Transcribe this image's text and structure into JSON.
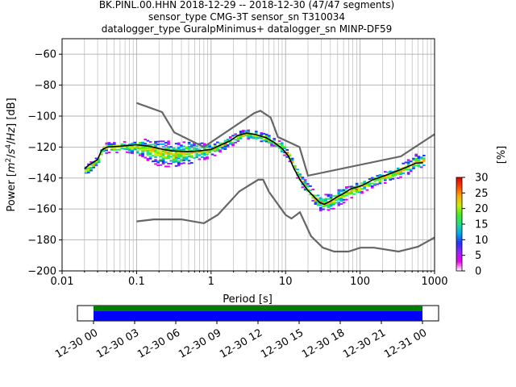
{
  "chart_data": {
    "type": "heatmap",
    "title_lines": [
      "BK.PINL.00.HHN   2018-12-29 -- 2018-12-30  (47/47 segments)",
      "sensor_type CMG-3T sensor_sn T310034",
      "datalogger_type GuralpMinimus+ datalogger_sn MINP-DF59"
    ],
    "xlabel": "Period [s]",
    "ylabel": "Power [$m^2/s^4/Hz$] [dB]",
    "ylabel_parts": [
      "Power [",
      "m",
      "2",
      "/",
      "s",
      "4",
      "/",
      "Hz",
      "] [dB]"
    ],
    "x_scale": "log",
    "xlim": [
      0.01,
      1000
    ],
    "ylim": [
      -200,
      -50
    ],
    "grid": true,
    "x_ticks": [
      {
        "value": 0.01,
        "label": "0.01"
      },
      {
        "value": 0.1,
        "label": "0.1"
      },
      {
        "value": 1,
        "label": "1"
      },
      {
        "value": 10,
        "label": "10"
      },
      {
        "value": 100,
        "label": "100"
      },
      {
        "value": 1000,
        "label": "1000"
      }
    ],
    "y_ticks": [
      {
        "value": -60,
        "label": "−60"
      },
      {
        "value": -80,
        "label": "−80"
      },
      {
        "value": -100,
        "label": "−100"
      },
      {
        "value": -120,
        "label": "−120"
      },
      {
        "value": -140,
        "label": "−140"
      },
      {
        "value": -160,
        "label": "−160"
      },
      {
        "value": -180,
        "label": "−180"
      },
      {
        "value": -200,
        "label": "−200"
      }
    ],
    "noise_models": [
      {
        "name": "NHNM",
        "color": "#666666",
        "points": [
          [
            0.1,
            -91.5
          ],
          [
            0.22,
            -97.4
          ],
          [
            0.32,
            -110.5
          ],
          [
            0.8,
            -120
          ],
          [
            3.8,
            -98
          ],
          [
            4.6,
            -96.5
          ],
          [
            6.3,
            -101
          ],
          [
            7.9,
            -113.5
          ],
          [
            15.4,
            -120
          ],
          [
            20,
            -138.5
          ],
          [
            354,
            -126
          ],
          [
            10000,
            -80
          ]
        ]
      },
      {
        "name": "NLNM",
        "color": "#666666",
        "points": [
          [
            0.1,
            -168
          ],
          [
            0.17,
            -166.7
          ],
          [
            0.4,
            -166.7
          ],
          [
            0.8,
            -169.2
          ],
          [
            1.24,
            -163.7
          ],
          [
            2.4,
            -148.6
          ],
          [
            4.3,
            -141.1
          ],
          [
            5,
            -141.1
          ],
          [
            6,
            -149
          ],
          [
            10,
            -163.8
          ],
          [
            12,
            -166.2
          ],
          [
            15.6,
            -162.1
          ],
          [
            21.9,
            -177.5
          ],
          [
            31.6,
            -185
          ],
          [
            45,
            -187.5
          ],
          [
            70,
            -187.5
          ],
          [
            101,
            -185
          ],
          [
            154,
            -185
          ],
          [
            328,
            -187.5
          ],
          [
            600,
            -184.4
          ],
          [
            10000,
            -151.5
          ]
        ]
      }
    ],
    "mean_line": {
      "color": "#000000",
      "points": [
        [
          0.02,
          -134
        ],
        [
          0.023,
          -131.5
        ],
        [
          0.026,
          -130
        ],
        [
          0.03,
          -128
        ],
        [
          0.034,
          -122
        ],
        [
          0.04,
          -120
        ],
        [
          0.06,
          -119.5
        ],
        [
          0.1,
          -118.5
        ],
        [
          0.15,
          -119.5
        ],
        [
          0.2,
          -121
        ],
        [
          0.3,
          -122.5
        ],
        [
          0.5,
          -123
        ],
        [
          0.7,
          -122.5
        ],
        [
          1,
          -121.5
        ],
        [
          1.3,
          -119
        ],
        [
          1.8,
          -116
        ],
        [
          2.3,
          -112.5
        ],
        [
          3,
          -111
        ],
        [
          4,
          -112
        ],
        [
          5.5,
          -114
        ],
        [
          7,
          -117
        ],
        [
          9,
          -121
        ],
        [
          11,
          -126
        ],
        [
          13,
          -134
        ],
        [
          16,
          -142
        ],
        [
          20,
          -148
        ],
        [
          24,
          -152
        ],
        [
          29,
          -156
        ],
        [
          33,
          -157
        ],
        [
          40,
          -155
        ],
        [
          50,
          -152
        ],
        [
          60,
          -150
        ],
        [
          75,
          -147
        ],
        [
          90,
          -146
        ],
        [
          110,
          -144.5
        ],
        [
          150,
          -141
        ],
        [
          200,
          -139
        ],
        [
          260,
          -137
        ],
        [
          330,
          -135
        ],
        [
          420,
          -133
        ],
        [
          550,
          -130.5
        ],
        [
          700,
          -130
        ]
      ]
    },
    "density_bands": [
      [
        0.02,
        -138,
        -132
      ],
      [
        0.023,
        -136,
        -129
      ],
      [
        0.026,
        -133,
        -127
      ],
      [
        0.03,
        -131,
        -124
      ],
      [
        0.034,
        -124,
        -117
      ],
      [
        0.04,
        -123,
        -116
      ],
      [
        0.06,
        -123,
        -116
      ],
      [
        0.1,
        -125,
        -114
      ],
      [
        0.15,
        -129,
        -114
      ],
      [
        0.2,
        -132,
        -115
      ],
      [
        0.3,
        -132,
        -116
      ],
      [
        0.5,
        -130,
        -116
      ],
      [
        0.7,
        -128,
        -117
      ],
      [
        1,
        -126,
        -117
      ],
      [
        1.3,
        -122,
        -115
      ],
      [
        1.8,
        -119,
        -112
      ],
      [
        2.3,
        -116,
        -109
      ],
      [
        3,
        -114,
        -108
      ],
      [
        4,
        -115,
        -109
      ],
      [
        5.5,
        -117,
        -111
      ],
      [
        7,
        -120,
        -114
      ],
      [
        9,
        -124,
        -117
      ],
      [
        11,
        -129,
        -122
      ],
      [
        13,
        -137,
        -130
      ],
      [
        16,
        -145,
        -138
      ],
      [
        20,
        -152,
        -144
      ],
      [
        24,
        -157,
        -148
      ],
      [
        29,
        -161,
        -150
      ],
      [
        33,
        -162,
        -150
      ],
      [
        40,
        -160,
        -149
      ],
      [
        50,
        -157,
        -146
      ],
      [
        60,
        -155,
        -145
      ],
      [
        75,
        -152,
        -143
      ],
      [
        90,
        -151,
        -142
      ],
      [
        110,
        -148,
        -140
      ],
      [
        150,
        -145,
        -137
      ],
      [
        200,
        -143,
        -135
      ],
      [
        260,
        -141,
        -133
      ],
      [
        330,
        -139,
        -131
      ],
      [
        420,
        -137,
        -128
      ],
      [
        550,
        -134,
        -124
      ],
      [
        700,
        -133,
        -124
      ]
    ],
    "colorbar": {
      "label": "[%]",
      "range": [
        0,
        30
      ],
      "ticks": [
        {
          "value": 0,
          "label": "0"
        },
        {
          "value": 5,
          "label": "5"
        },
        {
          "value": 10,
          "label": "10"
        },
        {
          "value": 15,
          "label": "15"
        },
        {
          "value": 20,
          "label": "20"
        },
        {
          "value": 25,
          "label": "25"
        },
        {
          "value": 30,
          "label": "30"
        }
      ],
      "colors": [
        "#ffffff",
        "#ee00ee",
        "#9922ff",
        "#2233ff",
        "#00aaee",
        "#22dd88",
        "#44ee22",
        "#ccee00",
        "#ffaa00",
        "#ff4400",
        "#dd0000"
      ]
    },
    "coverage": {
      "ticks": [
        "12-30 00",
        "12-30 03",
        "12-30 06",
        "12-30 09",
        "12-30 12",
        "12-30 15",
        "12-30 18",
        "12-30 21",
        "12-31 00"
      ],
      "top_color": "#008000",
      "bottom_color": "#0000ff"
    }
  }
}
